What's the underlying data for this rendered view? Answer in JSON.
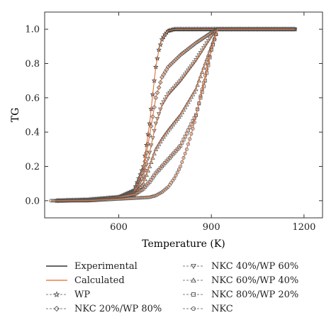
{
  "chart_data": {
    "type": "line",
    "xlabel": "Temperature (K)",
    "ylabel": "TG",
    "xlim": [
      360,
      1260
    ],
    "ylim": [
      -0.1,
      1.1
    ],
    "x_ticks": [
      600,
      900,
      1200
    ],
    "y_ticks": [
      0.0,
      0.2,
      0.4,
      0.6,
      0.8,
      1.0
    ],
    "x_tick_labels": [
      "600",
      "900",
      "1200"
    ],
    "y_tick_labels": [
      "0.0",
      "0.2",
      "0.4",
      "0.6",
      "0.8",
      "1.0"
    ],
    "grid": false,
    "legend_position": "bottom",
    "series": [
      {
        "name": "WP",
        "marker": "star",
        "color": "#333333",
        "x": [
          400,
          500,
          600,
          650,
          680,
          700,
          710,
          720,
          730,
          740,
          750,
          760,
          780,
          800,
          850,
          900,
          1000,
          1100,
          1170
        ],
        "y": [
          0.0,
          0.005,
          0.02,
          0.06,
          0.2,
          0.45,
          0.62,
          0.78,
          0.88,
          0.94,
          0.97,
          0.99,
          1.0,
          1.0,
          1.0,
          1.0,
          1.0,
          1.0,
          1.0
        ]
      },
      {
        "name": "NKC 20%/WP 80%",
        "marker": "diamond",
        "color": "#555555",
        "x": [
          400,
          500,
          600,
          650,
          680,
          700,
          720,
          740,
          760,
          800,
          850,
          900,
          920,
          1000,
          1100,
          1170
        ],
        "y": [
          0.0,
          0.005,
          0.02,
          0.06,
          0.18,
          0.38,
          0.6,
          0.72,
          0.78,
          0.85,
          0.92,
          0.98,
          1.0,
          1.0,
          1.0,
          1.0
        ]
      },
      {
        "name": "NKC 40%/WP 60%",
        "marker": "triangle-down",
        "color": "#555555",
        "x": [
          400,
          500,
          600,
          650,
          680,
          700,
          720,
          740,
          760,
          800,
          850,
          900,
          920,
          1000,
          1100,
          1170
        ],
        "y": [
          0.0,
          0.005,
          0.02,
          0.05,
          0.14,
          0.28,
          0.45,
          0.56,
          0.62,
          0.7,
          0.82,
          0.96,
          1.0,
          1.0,
          1.0,
          1.0
        ]
      },
      {
        "name": "NKC 60%/WP 40%",
        "marker": "triangle-up",
        "color": "#555555",
        "x": [
          400,
          500,
          600,
          650,
          680,
          700,
          720,
          740,
          760,
          800,
          850,
          900,
          920,
          1000,
          1100,
          1170
        ],
        "y": [
          0.0,
          0.005,
          0.02,
          0.04,
          0.1,
          0.2,
          0.3,
          0.36,
          0.41,
          0.5,
          0.65,
          0.9,
          1.0,
          1.0,
          1.0,
          1.0
        ]
      },
      {
        "name": "NKC 80%/WP 20%",
        "marker": "square",
        "color": "#555555",
        "x": [
          400,
          500,
          600,
          650,
          680,
          700,
          720,
          740,
          760,
          800,
          850,
          880,
          900,
          920,
          1000,
          1100,
          1170
        ],
        "y": [
          0.0,
          0.005,
          0.02,
          0.035,
          0.07,
          0.11,
          0.16,
          0.2,
          0.24,
          0.32,
          0.5,
          0.7,
          0.88,
          1.0,
          1.0,
          1.0,
          1.0
        ]
      },
      {
        "name": "NKC",
        "marker": "circle",
        "color": "#555555",
        "x": [
          380,
          500,
          600,
          650,
          700,
          720,
          740,
          760,
          780,
          800,
          820,
          840,
          860,
          880,
          900,
          920,
          1000,
          1100,
          1170
        ],
        "y": [
          0.0,
          0.0,
          0.01,
          0.015,
          0.02,
          0.03,
          0.05,
          0.08,
          0.13,
          0.2,
          0.3,
          0.42,
          0.57,
          0.73,
          0.88,
          1.0,
          1.0,
          1.0,
          1.0
        ]
      }
    ],
    "legend": [
      {
        "label": "Experimental",
        "style": "line",
        "color": "#333333"
      },
      {
        "label": "Calculated",
        "style": "line",
        "color": "#E8804A"
      },
      {
        "label": "WP",
        "style": "marker",
        "marker": "star"
      },
      {
        "label": "NKC 20%/WP 80%",
        "style": "marker",
        "marker": "diamond"
      },
      {
        "label": "NKC 40%/WP 60%",
        "style": "marker",
        "marker": "triangle-down"
      },
      {
        "label": "NKC 60%/WP 40%",
        "style": "marker",
        "marker": "triangle-up"
      },
      {
        "label": "NKC 80%/WP 20%",
        "style": "marker",
        "marker": "square"
      },
      {
        "label": "NKC",
        "style": "marker",
        "marker": "circle"
      }
    ],
    "colors": {
      "experimental": "#333333",
      "calculated": "#E8804A",
      "marker": "#555555"
    }
  }
}
